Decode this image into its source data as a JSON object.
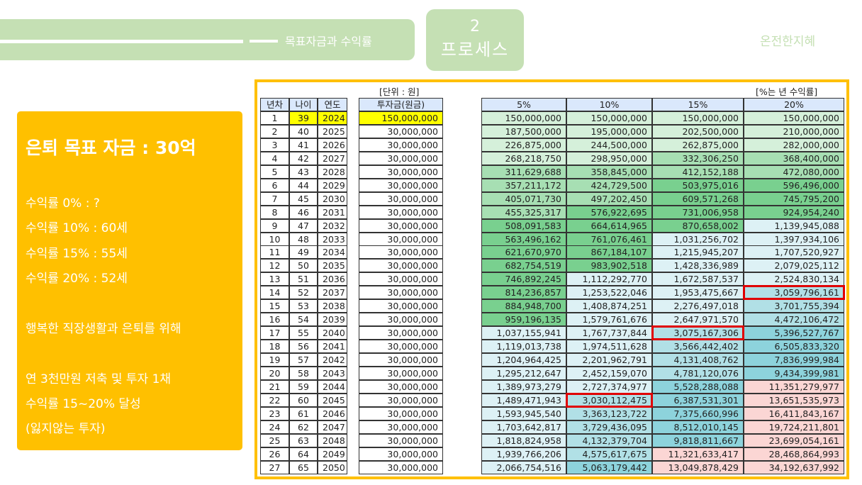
{
  "header": {
    "subtitle": "목표자금과 수익률",
    "section_number": "2",
    "section_label": "프로세스",
    "brand": "온전한지혜"
  },
  "summary": {
    "title": "은퇴 목표 자금 : 30억",
    "lines": [
      "수익률   0% : ?",
      "수익률 10% : 60세",
      "수익률 15% : 55세",
      "수익률 20% : 52세",
      "행복한 직장생활과 은퇴를 위해",
      "연 3천만원 저축 및 투자 1채",
      "수익률 15~20% 달성",
      "(잃지않는 투자)"
    ]
  },
  "table": {
    "unit_label": "[단위 : 원]",
    "rate_label": "[%는 년 수익률]",
    "headers": [
      "년차",
      "나이",
      "연도",
      "투자금(원금)",
      "5%",
      "10%",
      "15%",
      "20%"
    ],
    "colors": {
      "yellow": "#ffff00",
      "g1": "#d5f0da",
      "g2": "#a7dfb3",
      "g3": "#79d08f",
      "b1": "#ddf1f5",
      "b2": "#b1e0e6",
      "b3": "#8dd3dc",
      "p1": "#fbd6d4",
      "red": "#e00000"
    },
    "highlight": [
      [
        13,
        7
      ],
      [
        16,
        6
      ],
      [
        21,
        5
      ]
    ],
    "rows": [
      [
        "1",
        "39",
        "2024",
        "150,000,000",
        "150,000,000",
        "150,000,000",
        "150,000,000",
        "150,000,000"
      ],
      [
        "2",
        "40",
        "2025",
        "30,000,000",
        "187,500,000",
        "195,000,000",
        "202,500,000",
        "210,000,000"
      ],
      [
        "3",
        "41",
        "2026",
        "30,000,000",
        "226,875,000",
        "244,500,000",
        "262,875,000",
        "282,000,000"
      ],
      [
        "4",
        "42",
        "2027",
        "30,000,000",
        "268,218,750",
        "298,950,000",
        "332,306,250",
        "368,400,000"
      ],
      [
        "5",
        "43",
        "2028",
        "30,000,000",
        "311,629,688",
        "358,845,000",
        "412,152,188",
        "472,080,000"
      ],
      [
        "6",
        "44",
        "2029",
        "30,000,000",
        "357,211,172",
        "424,729,500",
        "503,975,016",
        "596,496,000"
      ],
      [
        "7",
        "45",
        "2030",
        "30,000,000",
        "405,071,730",
        "497,202,450",
        "609,571,268",
        "745,795,200"
      ],
      [
        "8",
        "46",
        "2031",
        "30,000,000",
        "455,325,317",
        "576,922,695",
        "731,006,958",
        "924,954,240"
      ],
      [
        "9",
        "47",
        "2032",
        "30,000,000",
        "508,091,583",
        "664,614,965",
        "870,658,002",
        "1,139,945,088"
      ],
      [
        "10",
        "48",
        "2033",
        "30,000,000",
        "563,496,162",
        "761,076,461",
        "1,031,256,702",
        "1,397,934,106"
      ],
      [
        "11",
        "49",
        "2034",
        "30,000,000",
        "621,670,970",
        "867,184,107",
        "1,215,945,207",
        "1,707,520,927"
      ],
      [
        "12",
        "50",
        "2035",
        "30,000,000",
        "682,754,519",
        "983,902,518",
        "1,428,336,989",
        "2,079,025,112"
      ],
      [
        "13",
        "51",
        "2036",
        "30,000,000",
        "746,892,245",
        "1,112,292,770",
        "1,672,587,537",
        "2,524,830,134"
      ],
      [
        "14",
        "52",
        "2037",
        "30,000,000",
        "814,236,857",
        "1,253,522,046",
        "1,953,475,667",
        "3,059,796,161"
      ],
      [
        "15",
        "53",
        "2038",
        "30,000,000",
        "884,948,700",
        "1,408,874,251",
        "2,276,497,018",
        "3,701,755,394"
      ],
      [
        "16",
        "54",
        "2039",
        "30,000,000",
        "959,196,135",
        "1,579,761,676",
        "2,647,971,570",
        "4,472,106,472"
      ],
      [
        "17",
        "55",
        "2040",
        "30,000,000",
        "1,037,155,941",
        "1,767,737,844",
        "3,075,167,306",
        "5,396,527,767"
      ],
      [
        "18",
        "56",
        "2041",
        "30,000,000",
        "1,119,013,738",
        "1,974,511,628",
        "3,566,442,402",
        "6,505,833,320"
      ],
      [
        "19",
        "57",
        "2042",
        "30,000,000",
        "1,204,964,425",
        "2,201,962,791",
        "4,131,408,762",
        "7,836,999,984"
      ],
      [
        "20",
        "58",
        "2043",
        "30,000,000",
        "1,295,212,647",
        "2,452,159,070",
        "4,781,120,076",
        "9,434,399,981"
      ],
      [
        "21",
        "59",
        "2044",
        "30,000,000",
        "1,389,973,279",
        "2,727,374,977",
        "5,528,288,088",
        "11,351,279,977"
      ],
      [
        "22",
        "60",
        "2045",
        "30,000,000",
        "1,489,471,943",
        "3,030,112,475",
        "6,387,531,301",
        "13,651,535,973"
      ],
      [
        "23",
        "61",
        "2046",
        "30,000,000",
        "1,593,945,540",
        "3,363,123,722",
        "7,375,660,996",
        "16,411,843,167"
      ],
      [
        "24",
        "62",
        "2047",
        "30,000,000",
        "1,703,642,817",
        "3,729,436,095",
        "8,512,010,145",
        "19,724,211,801"
      ],
      [
        "25",
        "63",
        "2048",
        "30,000,000",
        "1,818,824,958",
        "4,132,379,704",
        "9,818,811,667",
        "23,699,054,161"
      ],
      [
        "26",
        "64",
        "2049",
        "30,000,000",
        "1,939,766,206",
        "4,575,617,675",
        "11,321,633,417",
        "28,468,864,993"
      ],
      [
        "27",
        "65",
        "2050",
        "30,000,000",
        "2,066,754,516",
        "5,063,179,442",
        "13,049,878,429",
        "34,192,637,992"
      ]
    ]
  }
}
